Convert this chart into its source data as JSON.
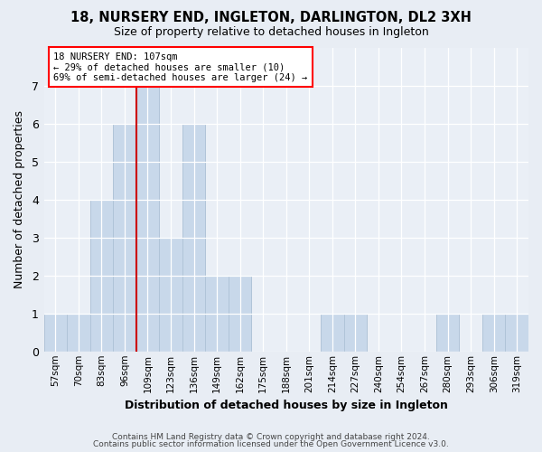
{
  "title": "18, NURSERY END, INGLETON, DARLINGTON, DL2 3XH",
  "subtitle": "Size of property relative to detached houses in Ingleton",
  "xlabel": "Distribution of detached houses by size in Ingleton",
  "ylabel": "Number of detached properties",
  "bar_color": "#c8d8ea",
  "bar_edgecolor": "#b0c4d8",
  "marker_color": "#cc0000",
  "categories": [
    "57sqm",
    "70sqm",
    "83sqm",
    "96sqm",
    "109sqm",
    "123sqm",
    "136sqm",
    "149sqm",
    "162sqm",
    "175sqm",
    "188sqm",
    "201sqm",
    "214sqm",
    "227sqm",
    "240sqm",
    "254sqm",
    "267sqm",
    "280sqm",
    "293sqm",
    "306sqm",
    "319sqm"
  ],
  "values": [
    1,
    1,
    4,
    6,
    7,
    3,
    6,
    2,
    2,
    0,
    0,
    0,
    1,
    1,
    0,
    0,
    0,
    1,
    0,
    1,
    1
  ],
  "marker_bin_index": 4,
  "annotation_line1": "18 NURSERY END: 107sqm",
  "annotation_line2": "← 29% of detached houses are smaller (10)",
  "annotation_line3": "69% of semi-detached houses are larger (24) →",
  "ylim": [
    0,
    8
  ],
  "yticks": [
    0,
    1,
    2,
    3,
    4,
    5,
    6,
    7
  ],
  "footer1": "Contains HM Land Registry data © Crown copyright and database right 2024.",
  "footer2": "Contains public sector information licensed under the Open Government Licence v3.0.",
  "background_color": "#e8edf4",
  "plot_bg_color": "#eaeff6"
}
